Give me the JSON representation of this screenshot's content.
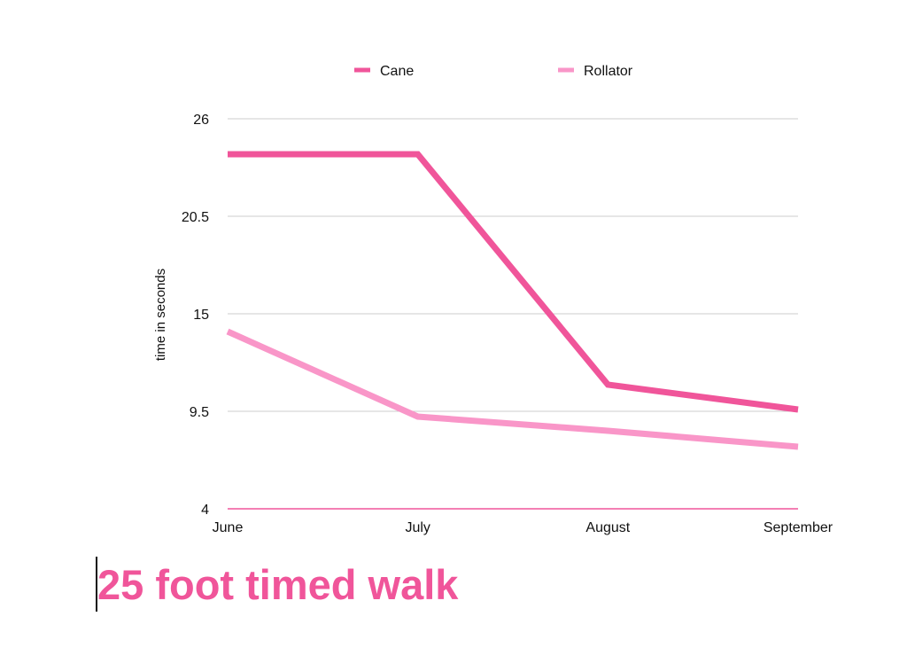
{
  "chart_data": {
    "type": "line",
    "title": "",
    "xlabel": "",
    "ylabel": "time in seconds",
    "categories": [
      "June",
      "July",
      "August",
      "September"
    ],
    "series": [
      {
        "name": "Cane",
        "values": [
          24,
          24,
          11,
          9.6
        ],
        "color": "#f0559a"
      },
      {
        "name": "Rollator",
        "values": [
          14,
          9.2,
          8.4,
          7.5
        ],
        "color": "#f996c8"
      }
    ],
    "ylim": [
      4,
      26
    ],
    "yticks": [
      "4",
      "9.5",
      "15",
      "20.5",
      "26"
    ],
    "grid": true,
    "legend_position": "top"
  },
  "caption": {
    "text": "25 foot timed walk",
    "color": "#f0559a"
  }
}
